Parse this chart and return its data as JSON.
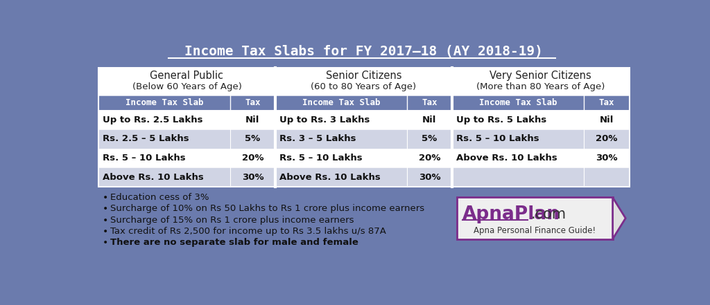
{
  "title": "Income Tax Slabs for FY 2017–18 (AY 2018-19)",
  "bg_color": "#6B7BAD",
  "table_row_light": "#FFFFFF",
  "table_row_dark": "#D0D4E4",
  "sections": [
    {
      "title": "General Public",
      "subtitle": "(Below 60 Years of Age)",
      "rows": [
        [
          "Up to Rs. 2.5 Lakhs",
          "Nil"
        ],
        [
          "Rs. 2.5 – 5 Lakhs",
          "5%"
        ],
        [
          "Rs. 5 – 10 Lakhs",
          "20%"
        ],
        [
          "Above Rs. 10 Lakhs",
          "30%"
        ]
      ]
    },
    {
      "title": "Senior Citizens",
      "subtitle": "(60 to 80 Years of Age)",
      "rows": [
        [
          "Up to Rs. 3 Lakhs",
          "Nil"
        ],
        [
          "Rs. 3 – 5 Lakhs",
          "5%"
        ],
        [
          "Rs. 5 – 10 Lakhs",
          "20%"
        ],
        [
          "Above Rs. 10 Lakhs",
          "30%"
        ]
      ]
    },
    {
      "title": "Very Senior Citizens",
      "subtitle": "(More than 80 Years of Age)",
      "rows": [
        [
          "Up to Rs. 5 Lakhs",
          "Nil"
        ],
        [
          "Rs. 5 – 10 Lakhs",
          "20%"
        ],
        [
          "Above Rs. 10 Lakhs",
          "30%"
        ],
        [
          "",
          ""
        ]
      ]
    }
  ],
  "bullets": [
    {
      "text": "Education cess of 3%",
      "bold": false
    },
    {
      "text": "Surcharge of 10% on Rs 50 Lakhs to Rs 1 crore plus income earners",
      "bold": false
    },
    {
      "text": "Surcharge of 15% on Rs 1 crore plus income earners",
      "bold": false
    },
    {
      "text": "Tax credit of Rs 2,500 for income up to Rs 3.5 lakhs u/s 87A",
      "bold": false
    },
    {
      "text": "There are no separate slab for male and female",
      "bold": true
    }
  ],
  "logo_text1": "ApnaPlan",
  "logo_text2": ".com",
  "logo_subtext": "Apna Personal Finance Guide!",
  "logo_color": "#7B2D8B",
  "logo_underline_color": "#7B2D8B"
}
